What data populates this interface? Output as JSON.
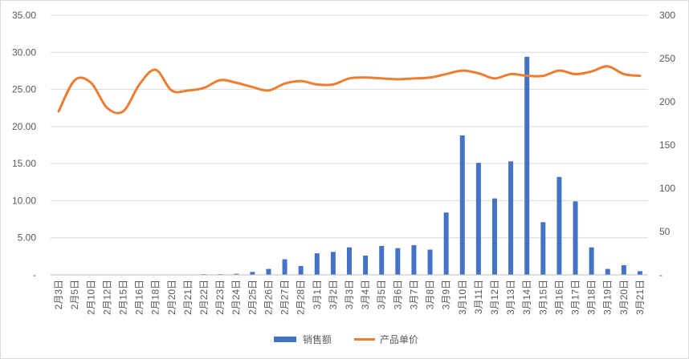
{
  "chart_data": {
    "type": "bar",
    "title": "",
    "xlabel": "",
    "ylabel": "",
    "categories": [
      "2月3日",
      "2月5日",
      "2月10日",
      "2月12日",
      "2月15日",
      "2月16日",
      "2月18日",
      "2月20日",
      "2月21日",
      "2月22日",
      "2月23日",
      "2月24日",
      "2月25日",
      "2月26日",
      "2月27日",
      "2月28日",
      "3月1日",
      "3月2日",
      "3月3日",
      "3月4日",
      "3月5日",
      "3月6日",
      "3月7日",
      "3月8日",
      "3月9日",
      "3月10日",
      "3月11日",
      "3月12日",
      "3月13日",
      "3月14日",
      "3月15日",
      "3月16日",
      "3月17日",
      "3月18日",
      "3月19日",
      "3月20日",
      "3月21日"
    ],
    "series": [
      {
        "name": "销售额",
        "type": "bar",
        "axis": "left",
        "color": "#4472C4",
        "values": [
          0,
          0,
          0,
          0,
          0,
          0,
          0,
          0,
          0,
          0.1,
          0.1,
          0.15,
          0.4,
          0.8,
          2.1,
          1.2,
          2.9,
          3.1,
          3.7,
          2.6,
          3.9,
          3.6,
          4.0,
          3.4,
          8.4,
          18.8,
          15.1,
          10.3,
          15.3,
          29.4,
          7.1,
          13.2,
          9.9,
          3.7,
          0.8,
          1.3,
          0.5
        ]
      },
      {
        "name": "产品单价",
        "type": "line",
        "axis": "right",
        "color": "#ED7D31",
        "values": [
          189,
          225,
          222,
          193,
          189,
          220,
          237,
          213,
          213,
          216,
          225,
          222,
          217,
          213,
          221,
          224,
          220,
          220,
          227,
          228,
          227,
          226,
          227,
          228,
          232,
          236,
          233,
          227,
          232,
          230,
          230,
          236,
          232,
          235,
          241,
          232,
          230
        ]
      }
    ],
    "y_left": {
      "min": 0,
      "max": 35,
      "step": 5,
      "tick_labels": [
        "-",
        "5.00",
        "10.00",
        "15.00",
        "20.00",
        "25.00",
        "30.00",
        "35.00"
      ]
    },
    "y_right": {
      "min": 0,
      "max": 300,
      "step": 50,
      "tick_labels": [
        "-",
        "50",
        "100",
        "150",
        "200",
        "250",
        "300"
      ]
    },
    "grid": true,
    "legend": "bottom",
    "legend_labels": [
      "销售额",
      "产品单价"
    ]
  }
}
